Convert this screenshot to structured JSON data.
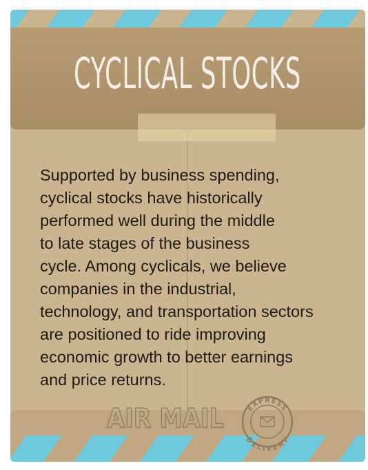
{
  "title": "CYCLICAL STOCKS",
  "body_lines": [
    "Supported by business spending,",
    "cyclical stocks have historically",
    "performed well during the middle",
    "to late stages of the business",
    "cycle. Among cyclicals, we believe",
    "companies in the industrial,",
    "technology, and transportation sectors",
    "are positioned to ride improving",
    "economic growth to better earnings",
    "and price returns."
  ],
  "air_mail": "AIR MAIL",
  "stamp": {
    "top": "EXPRESS",
    "bottom": "DELIVERY"
  }
}
